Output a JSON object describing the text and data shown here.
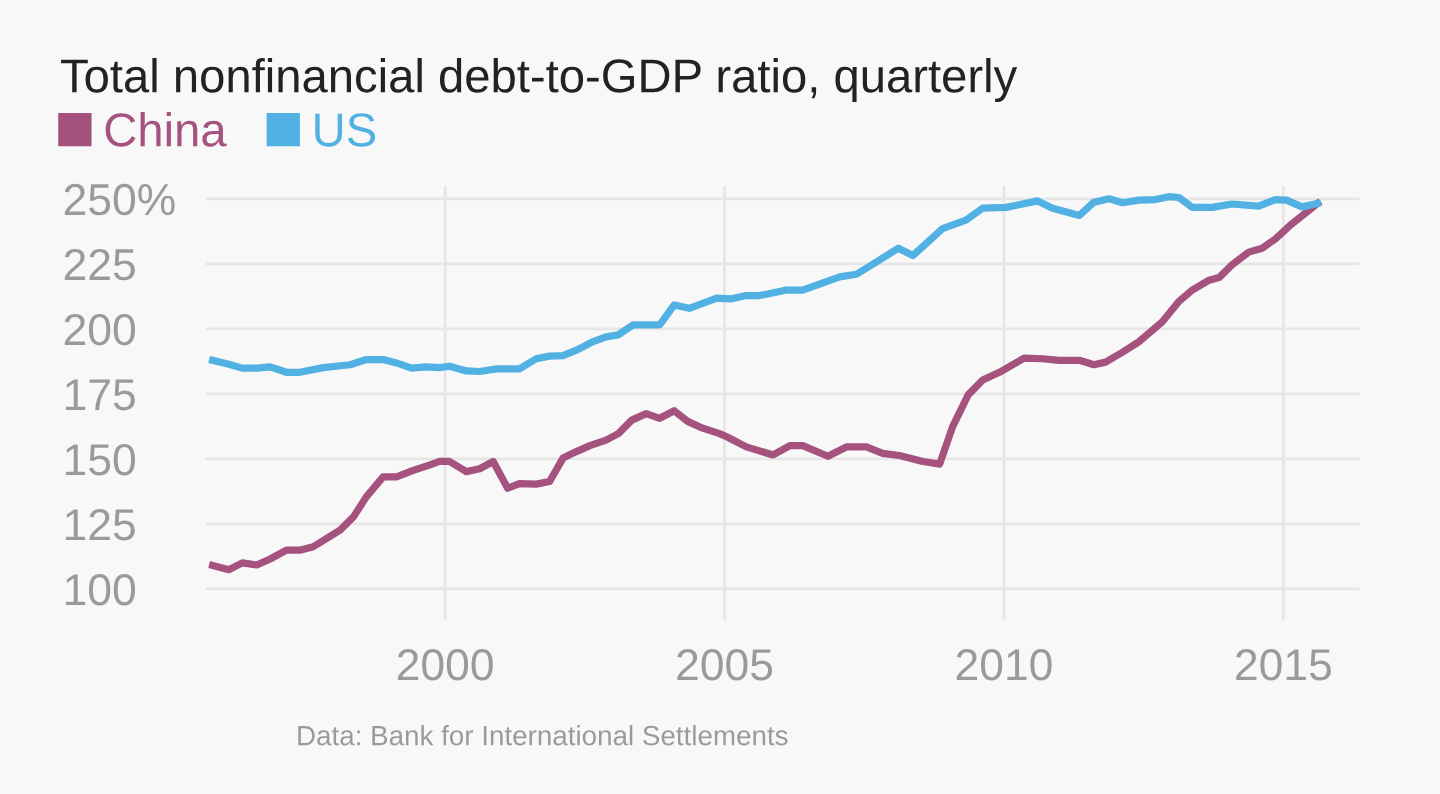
{
  "chart_data": {
    "type": "line",
    "title": "Total nonfinancial debt-to-GDP ratio, quarterly",
    "annotations": [
      "Data: Bank for International Settlements"
    ],
    "xlim": [
      1995.72,
      2016.36
    ],
    "ylim": [
      88,
      255
    ],
    "xticks": [
      2000,
      2005,
      2010,
      2015
    ],
    "yticks": [
      100,
      125,
      150,
      175,
      200,
      225,
      {
        "value": 250,
        "label": "250%"
      }
    ],
    "grid": true,
    "legend": "top left",
    "marker": "none",
    "line_style": "solid",
    "series": [
      {
        "name": "China",
        "color": "#a5527f",
        "x": [
          1995.84,
          1996.13,
          1996.37,
          1996.63,
          1996.87,
          1997.16,
          1997.4,
          1997.64,
          1998.12,
          1998.36,
          1998.59,
          1998.89,
          1999.13,
          1999.43,
          1999.73,
          1999.9,
          2000.08,
          2000.38,
          2000.62,
          2000.86,
          2001.12,
          2001.33,
          2001.63,
          2001.87,
          2002.11,
          2002.35,
          2002.59,
          2002.88,
          2003.1,
          2003.34,
          2003.6,
          2003.84,
          2004.1,
          2004.34,
          2004.61,
          2004.91,
          2005.04,
          2005.39,
          2005.87,
          2006.17,
          2006.4,
          2006.85,
          2007.18,
          2007.54,
          2007.83,
          2008.13,
          2008.55,
          2008.85,
          2009.08,
          2009.36,
          2009.62,
          2009.92,
          2010.36,
          2010.69,
          2010.99,
          2011.35,
          2011.61,
          2011.82,
          2012.12,
          2012.42,
          2012.83,
          2013.13,
          2013.37,
          2013.67,
          2013.85,
          2014.08,
          2014.38,
          2014.62,
          2014.86,
          2015.13,
          2015.39,
          2015.61
        ],
        "values": [
          109,
          107.4,
          110,
          109.2,
          111.5,
          114.9,
          114.9,
          116.2,
          122.6,
          127.7,
          135.4,
          143.1,
          143.1,
          145.6,
          147.7,
          149,
          149,
          145.1,
          146.2,
          149,
          138.7,
          140.5,
          140.3,
          141.3,
          150.3,
          152.8,
          155.1,
          157.2,
          159.7,
          164.9,
          167.4,
          165.6,
          168.5,
          164.4,
          161.8,
          159.7,
          158.5,
          154.6,
          151.5,
          155.1,
          155.1,
          151,
          154.6,
          154.6,
          152.1,
          151.3,
          149,
          148,
          162.3,
          174.6,
          180.3,
          183.3,
          188.7,
          188.5,
          187.9,
          187.9,
          186.2,
          187.2,
          191,
          195.1,
          202.6,
          210.5,
          214.9,
          218.7,
          219.7,
          224.6,
          229.5,
          231,
          234.6,
          240,
          244.4,
          248.2
        ]
      },
      {
        "name": "US",
        "color": "#52b1e3",
        "x": [
          1995.84,
          1996.13,
          1996.37,
          1996.63,
          1996.87,
          1997.16,
          1997.4,
          1997.82,
          1998.3,
          1998.59,
          1998.89,
          1999.13,
          1999.4,
          1999.66,
          1999.9,
          2000.08,
          2000.38,
          2000.62,
          2000.92,
          2001.33,
          2001.63,
          2001.87,
          2002.11,
          2002.35,
          2002.65,
          2002.88,
          2003.1,
          2003.36,
          2003.84,
          2004.1,
          2004.37,
          2004.86,
          2005.1,
          2005.39,
          2005.63,
          2006.11,
          2006.4,
          2007.06,
          2007.36,
          2007.71,
          2008.11,
          2008.37,
          2008.61,
          2008.9,
          2009.32,
          2009.62,
          2010.04,
          2010.6,
          2010.87,
          2011.35,
          2011.61,
          2011.88,
          2012.12,
          2012.42,
          2012.71,
          2012.95,
          2013.13,
          2013.37,
          2013.73,
          2014.08,
          2014.56,
          2014.86,
          2015.06,
          2015.33,
          2015.61
        ],
        "values": [
          187.9,
          186.4,
          184.9,
          184.9,
          185.4,
          183.3,
          183.3,
          185.1,
          186.2,
          188.2,
          188.2,
          186.9,
          184.9,
          185.4,
          185.1,
          185.6,
          183.8,
          183.6,
          184.6,
          184.6,
          188.5,
          189.5,
          189.7,
          191.8,
          195.1,
          196.9,
          197.7,
          201.5,
          201.5,
          209.2,
          207.9,
          211.8,
          211.5,
          212.8,
          212.8,
          214.9,
          214.9,
          220,
          221,
          225.6,
          231,
          228.2,
          232.8,
          238.5,
          241.8,
          246.4,
          246.7,
          249.2,
          246.4,
          243.6,
          248.7,
          250,
          248.5,
          249.5,
          249.7,
          250.8,
          250.5,
          246.7,
          246.7,
          248,
          247.2,
          249.7,
          249.5,
          246.9,
          248.2
        ]
      }
    ]
  }
}
